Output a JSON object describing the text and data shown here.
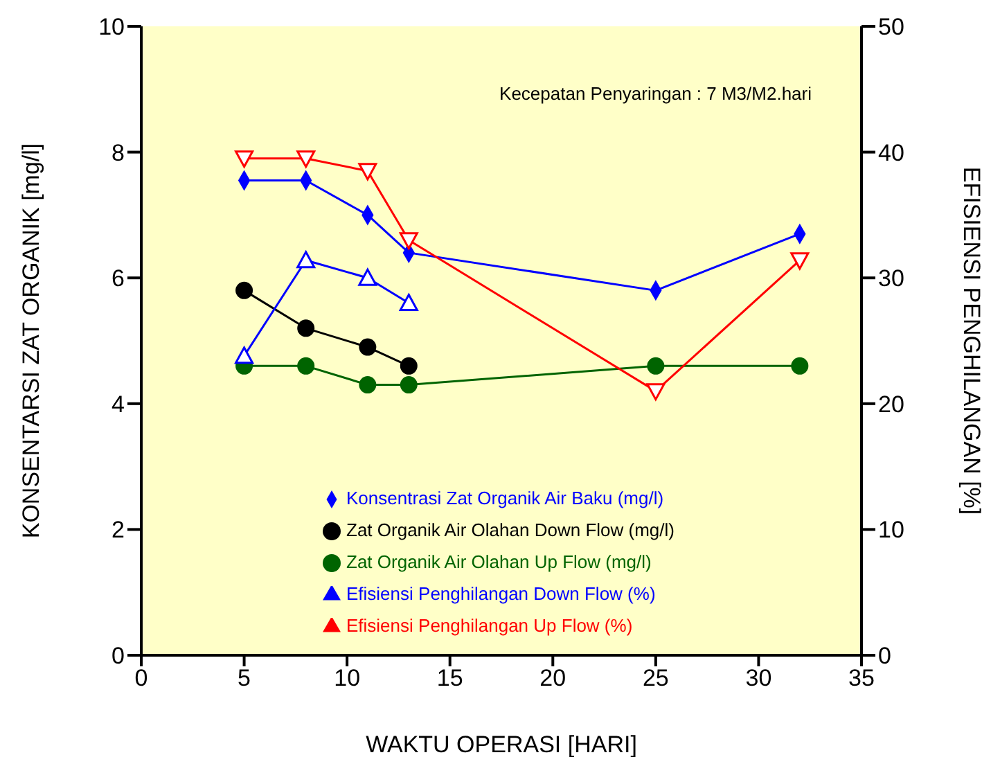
{
  "chart_data": {
    "type": "line",
    "xlabel": "WAKTU OPERASI [HARI]",
    "ylabel": "KONSENTARSI ZAT ORGANIK [mg/l]",
    "y2label": "EFISIENSI PENGHILANGAN [%]",
    "annotations": [
      "Kecepatan Penyaringan : 7 M3/M2.hari"
    ],
    "xlim": [
      0,
      35
    ],
    "xticks": [
      0,
      5,
      10,
      15,
      20,
      25,
      30,
      35
    ],
    "ylim": [
      0,
      10
    ],
    "yticks": [
      0,
      2,
      4,
      6,
      8,
      10
    ],
    "y2lim": [
      0,
      50
    ],
    "y2ticks": [
      0,
      10,
      20,
      30,
      40,
      50
    ],
    "grid": false,
    "legend": "bottom",
    "series": [
      {
        "name": "Konsentrasi Zat Organik Air Baku (mg/l)",
        "color": "#0000ff",
        "marker": "diamond",
        "x": [
          5,
          8,
          11,
          13,
          25,
          32
        ],
        "values": [
          7.55,
          7.55,
          7.0,
          6.4,
          5.8,
          6.7
        ]
      },
      {
        "name": "Zat Organik Air Olahan Down Flow (mg/l)",
        "color": "#000000",
        "marker": "circle",
        "x": [
          5,
          8,
          11,
          13
        ],
        "values": [
          5.8,
          5.2,
          4.9,
          4.6
        ]
      },
      {
        "name": "Zat Organik Air Olahan Up Flow (mg/l)",
        "color": "#006400",
        "marker": "circle",
        "x": [
          5,
          8,
          11,
          13,
          25,
          32
        ],
        "values": [
          4.6,
          4.6,
          4.3,
          4.3,
          4.6,
          4.6
        ]
      },
      {
        "name": "Efisiensi Penghilangan Down Flow (%)",
        "color": "#0000ff",
        "marker": "triangle",
        "axis": "y2",
        "x": [
          5,
          8,
          11,
          13
        ],
        "values": [
          23.8,
          31.4,
          30,
          28
        ]
      },
      {
        "name": "Efisiensi Penghilangan Up Flow (%)",
        "color": "#ff0000",
        "marker": "triangle-down",
        "axis": "y2",
        "x": [
          5,
          8,
          11,
          13,
          25,
          32
        ],
        "values": [
          39.5,
          39.5,
          38.5,
          33,
          21,
          31.4
        ]
      }
    ]
  }
}
